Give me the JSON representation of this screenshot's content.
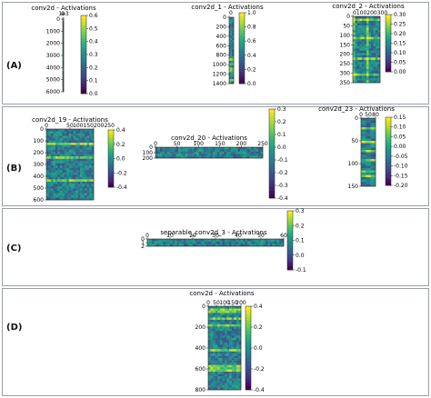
{
  "panels": [
    {
      "label": "(A)"
    },
    {
      "label": "(B)"
    },
    {
      "label": "(C)"
    },
    {
      "label": "(D)"
    }
  ],
  "chart_data": [
    {
      "id": "A1",
      "type": "heatmap",
      "title": "conv2d - Activations",
      "xticks": [
        "0",
        "1e3"
      ],
      "yticks": [
        "0",
        "1000",
        "2000",
        "3000",
        "4000",
        "5000",
        "6000"
      ],
      "colorbar": [
        "0.6",
        "0.5",
        "0.4",
        "0.3",
        "0.2",
        "0.1",
        "0.0"
      ],
      "color_range": [
        0.0,
        0.6
      ],
      "colormap": "viridis"
    },
    {
      "id": "A2",
      "type": "heatmap",
      "title": "conv2d_1 - Activations",
      "xticks": [
        "0"
      ],
      "yticks": [
        "0",
        "200",
        "400",
        "600",
        "800",
        "1000",
        "1200",
        "1400"
      ],
      "colorbar": [
        "1.0",
        "0.8",
        "0.6",
        "0.4",
        "0.2",
        "0.0"
      ],
      "color_range": [
        0.0,
        1.0
      ],
      "colormap": "viridis"
    },
    {
      "id": "A3",
      "type": "heatmap",
      "title": "conv2d_2 - Activations",
      "xticks": [
        "0100200300"
      ],
      "yticks": [
        "0",
        "50",
        "100",
        "150",
        "200",
        "250",
        "300",
        "350"
      ],
      "colorbar": [
        "0.30",
        "0.25",
        "0.20",
        "0.15",
        "0.10",
        "0.05",
        "0.00"
      ],
      "color_range": [
        0.0,
        0.3
      ],
      "colormap": "viridis"
    },
    {
      "id": "B1",
      "type": "heatmap",
      "title": "conv2d_19 - Activations",
      "xticks": [
        "0",
        "50",
        "100150200250"
      ],
      "yticks": [
        "0",
        "100",
        "200",
        "300",
        "400",
        "500",
        "600"
      ],
      "colorbar": [
        "0.4",
        "0.2",
        "0.0",
        "-0.2",
        "-0.4"
      ],
      "color_range": [
        -0.4,
        0.4
      ],
      "colormap": "viridis"
    },
    {
      "id": "B2",
      "type": "heatmap",
      "title": "conv2d_20 - Activations",
      "xticks": [
        "0",
        "50",
        "100",
        "150",
        "200",
        "250"
      ],
      "yticks": [
        "0",
        "100",
        "200"
      ],
      "colorbar": [
        "0.3",
        "0.2",
        "0.1",
        "0.0",
        "-0.1",
        "-0.2",
        "-0.3",
        "-0.4"
      ],
      "color_range": [
        -0.4,
        0.3
      ],
      "colormap": "viridis"
    },
    {
      "id": "B3",
      "type": "heatmap",
      "title": "conv2d_23 - Activations",
      "xticks": [
        "0",
        "50",
        "80"
      ],
      "yticks": [
        "0",
        "50",
        "100",
        "150"
      ],
      "colorbar": [
        "0.15",
        "0.10",
        "0.05",
        "0.00",
        "-0.05",
        "-0.10",
        "-0.15",
        "-0.20"
      ],
      "color_range": [
        -0.2,
        0.15
      ],
      "colormap": "viridis"
    },
    {
      "id": "C1",
      "type": "heatmap",
      "title": "separable_conv2d_3 - Activations",
      "xticks": [
        "0",
        "10",
        "20",
        "30",
        "40",
        "50",
        "60"
      ],
      "yticks": [
        "0",
        "1",
        "2"
      ],
      "colorbar": [
        "0.3",
        "0.2",
        "0.1",
        "0.0",
        "-0.1"
      ],
      "color_range": [
        -0.15,
        0.3
      ],
      "colormap": "viridis"
    },
    {
      "id": "D1",
      "type": "heatmap",
      "title": "conv2d - Activations",
      "xticks": [
        "0",
        "50",
        "100",
        "150",
        "200"
      ],
      "yticks": [
        "0",
        "200",
        "400",
        "600",
        "800"
      ],
      "colorbar": [
        "0.4",
        "0.2",
        "0.0",
        "-0.2",
        "-0.4"
      ],
      "color_range": [
        -0.45,
        0.45
      ],
      "colormap": "viridis"
    }
  ]
}
